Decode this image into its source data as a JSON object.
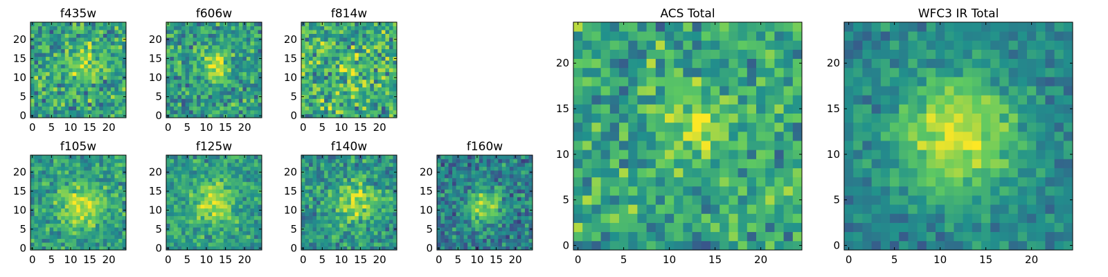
{
  "figure": {
    "colormap": "viridis",
    "colors": [
      "#440154",
      "#3b528b",
      "#21918c",
      "#5ec962",
      "#fde725"
    ]
  },
  "chart_data": [
    {
      "type": "heatmap",
      "title": "f435w",
      "xlim": [
        -0.5,
        24.5
      ],
      "ylim": [
        -0.5,
        24.5
      ],
      "xticks": [
        0,
        5,
        10,
        15,
        20
      ],
      "yticks": [
        0,
        5,
        10,
        15,
        20
      ],
      "grid_size": 25,
      "seed": 11,
      "peak": [
        13,
        14
      ],
      "signal": 0.25,
      "noise": 0.22,
      "base": 0.58,
      "sigma": 3.0
    },
    {
      "type": "heatmap",
      "title": "f606w",
      "xlim": [
        -0.5,
        24.5
      ],
      "ylim": [
        -0.5,
        24.5
      ],
      "xticks": [
        0,
        5,
        10,
        15,
        20
      ],
      "yticks": [
        0,
        5,
        10,
        15,
        20
      ],
      "grid_size": 25,
      "seed": 23,
      "peak": [
        12,
        13
      ],
      "signal": 0.35,
      "noise": 0.2,
      "base": 0.55,
      "sigma": 2.6
    },
    {
      "type": "heatmap",
      "title": "f814w",
      "xlim": [
        -0.5,
        24.5
      ],
      "ylim": [
        -0.5,
        24.5
      ],
      "xticks": [
        0,
        5,
        10,
        15,
        20
      ],
      "yticks": [
        0,
        5,
        10,
        15,
        20
      ],
      "grid_size": 25,
      "seed": 37,
      "peak": [
        12,
        12
      ],
      "signal": 0.15,
      "noise": 0.25,
      "base": 0.62,
      "sigma": 3.0
    },
    {
      "type": "heatmap",
      "title": "f105w",
      "xlim": [
        -0.5,
        24.5
      ],
      "ylim": [
        -0.5,
        24.5
      ],
      "xticks": [
        0,
        5,
        10,
        15,
        20
      ],
      "yticks": [
        0,
        5,
        10,
        15,
        20
      ],
      "grid_size": 25,
      "seed": 41,
      "peak": [
        13,
        11
      ],
      "signal": 0.35,
      "noise": 0.16,
      "base": 0.55,
      "sigma": 4.2
    },
    {
      "type": "heatmap",
      "title": "f125w",
      "xlim": [
        -0.5,
        24.5
      ],
      "ylim": [
        -0.5,
        24.5
      ],
      "xticks": [
        0,
        5,
        10,
        15,
        20
      ],
      "yticks": [
        0,
        5,
        10,
        15,
        20
      ],
      "grid_size": 25,
      "seed": 53,
      "peak": [
        12,
        12
      ],
      "signal": 0.35,
      "noise": 0.16,
      "base": 0.55,
      "sigma": 4.0
    },
    {
      "type": "heatmap",
      "title": "f140w",
      "xlim": [
        -0.5,
        24.5
      ],
      "ylim": [
        -0.5,
        24.5
      ],
      "xticks": [
        0,
        5,
        10,
        15,
        20
      ],
      "yticks": [
        0,
        5,
        10,
        15,
        20
      ],
      "grid_size": 25,
      "seed": 67,
      "peak": [
        14,
        12
      ],
      "signal": 0.35,
      "noise": 0.17,
      "base": 0.52,
      "sigma": 4.0
    },
    {
      "type": "heatmap",
      "title": "f160w",
      "xlim": [
        -0.5,
        24.5
      ],
      "ylim": [
        -0.5,
        24.5
      ],
      "xticks": [
        0,
        5,
        10,
        15,
        20
      ],
      "yticks": [
        0,
        5,
        10,
        15,
        20
      ],
      "grid_size": 25,
      "seed": 79,
      "peak": [
        12,
        11
      ],
      "signal": 0.45,
      "noise": 0.18,
      "base": 0.42,
      "sigma": 3.2
    },
    {
      "type": "heatmap",
      "title": "ACS Total",
      "xlim": [
        -0.5,
        24.5
      ],
      "ylim": [
        -0.5,
        24.5
      ],
      "xticks": [
        0,
        5,
        10,
        15,
        20
      ],
      "yticks": [
        0,
        5,
        10,
        15,
        20
      ],
      "grid_size": 25,
      "seed": 97,
      "peak": [
        13,
        13
      ],
      "signal": 0.28,
      "noise": 0.2,
      "base": 0.58,
      "sigma": 2.8
    },
    {
      "type": "heatmap",
      "title": "WFC3 IR Total",
      "xlim": [
        -0.5,
        24.5
      ],
      "ylim": [
        -0.5,
        24.5
      ],
      "xticks": [
        0,
        5,
        10,
        15,
        20
      ],
      "yticks": [
        0,
        5,
        10,
        15,
        20
      ],
      "grid_size": 25,
      "seed": 113,
      "peak": [
        12,
        12
      ],
      "signal": 0.5,
      "noise": 0.12,
      "base": 0.45,
      "sigma": 4.5
    }
  ]
}
